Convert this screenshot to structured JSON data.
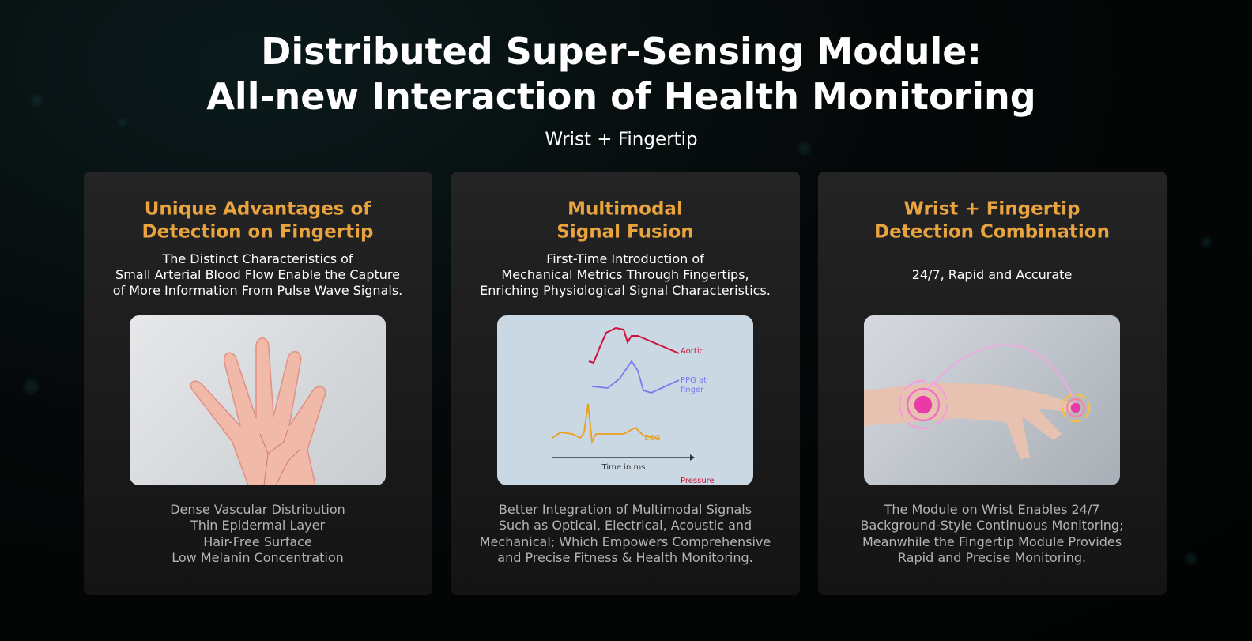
{
  "header": {
    "title_lines": [
      "Distributed Super-Sensing Module:",
      "All-new Interaction of Health Monitoring"
    ],
    "subtitle": "Wrist + Fingertip"
  },
  "cards": [
    {
      "title_lines": [
        "Unique Advantages of",
        "Detection on Fingertip"
      ],
      "intro_lines": [
        "The Distinct Characteristics of",
        "Small Arterial Blood Flow Enable the Capture",
        "of More Information From Pulse Wave Signals."
      ],
      "body_lines": [
        "Dense Vascular Distribution",
        "Thin Epidermal Layer",
        "Hair-Free Surface",
        "Low Melanin Concentration"
      ]
    },
    {
      "title_lines": [
        "Multimodal",
        "Signal Fusion"
      ],
      "intro_lines": [
        "First-Time Introduction of",
        "Mechanical Metrics Through Fingertips,",
        "Enriching Physiological Signal Characteristics."
      ],
      "body_lines": [
        "Better Integration of Multimodal Signals",
        "Such as Optical, Electrical, Acoustic and",
        "Mechanical; Which Empowers Comprehensive",
        "and Precise Fitness & Health Monitoring."
      ]
    },
    {
      "title_lines": [
        "Wrist + Fingertip",
        "Detection Combination"
      ],
      "intro_lines": [
        "24/7, Rapid and Accurate"
      ],
      "body_lines": [
        "The Module on Wrist Enables 24/7",
        "Background-Style Continuous Monitoring;",
        "Meanwhile the Fingertip Module Provides",
        "Rapid and Precise Monitoring."
      ]
    }
  ],
  "diagram": {
    "aortic": "Aortic",
    "ppg_lines": [
      "PPG at",
      "finger"
    ],
    "ecg": "ECG",
    "axis": "Time in ms",
    "pressure": "Pressure"
  }
}
